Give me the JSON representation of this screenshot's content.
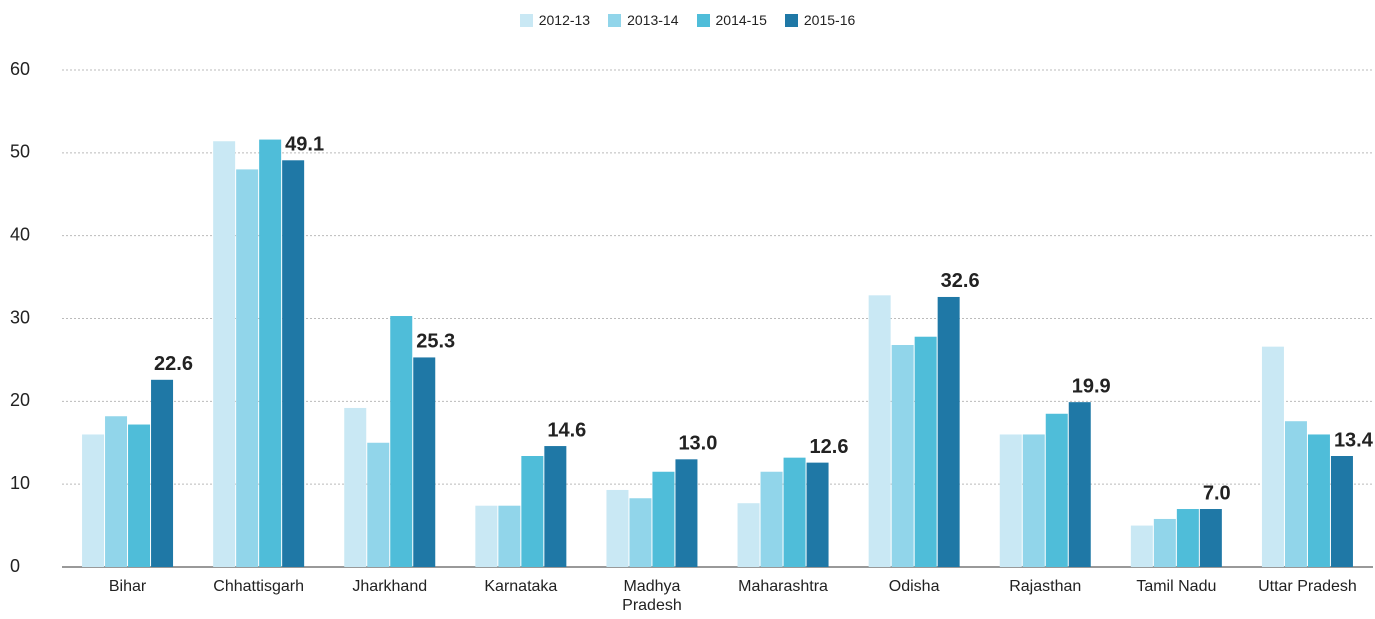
{
  "chart_data": {
    "type": "bar",
    "categories": [
      "Bihar",
      "Chhattisgarh",
      "Jharkhand",
      "Karnataka",
      "Madhya Pradesh",
      "Maharashtra",
      "Odisha",
      "Rajasthan",
      "Tamil Nadu",
      "Uttar Pradesh"
    ],
    "series": [
      {
        "name": "2012-13",
        "color": "#c9e8f4",
        "values": [
          16.0,
          51.4,
          19.2,
          7.4,
          9.3,
          7.7,
          32.8,
          16.0,
          5.0,
          26.6
        ]
      },
      {
        "name": "2013-14",
        "color": "#91d5ea",
        "values": [
          18.2,
          48.0,
          15.0,
          7.4,
          8.3,
          11.5,
          26.8,
          16.0,
          5.8,
          17.6
        ]
      },
      {
        "name": "2014-15",
        "color": "#4fbdd9",
        "values": [
          17.2,
          51.6,
          30.3,
          13.4,
          11.5,
          13.2,
          27.8,
          18.5,
          7.0,
          16.0
        ]
      },
      {
        "name": "2015-16",
        "color": "#1f78a6",
        "values": [
          22.6,
          49.1,
          25.3,
          14.6,
          13.0,
          12.6,
          32.6,
          19.9,
          7.0,
          13.4
        ],
        "value_labels": [
          "22.6",
          "49.1",
          "25.3",
          "14.6",
          "13.0",
          "12.6",
          "32.6",
          "19.9",
          "7.0",
          "13.4"
        ]
      }
    ],
    "ylim": [
      0,
      60
    ],
    "yticks": [
      0,
      10,
      20,
      30,
      40,
      50,
      60
    ],
    "grid": true,
    "legend": "top"
  }
}
